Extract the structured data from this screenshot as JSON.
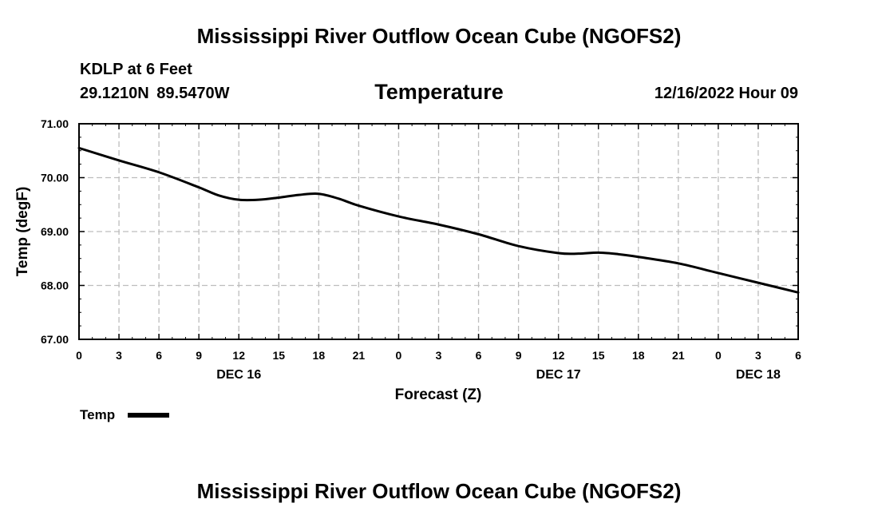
{
  "header": {
    "title": "Mississippi River Outflow Ocean Cube (NGOFS2)",
    "station": "KDLP at 6 Feet",
    "coordinates": "29.1210N  89.5470W",
    "timestamp": "12/16/2022 Hour 09"
  },
  "footer": {
    "title": "Mississippi River Outflow Ocean Cube (NGOFS2)"
  },
  "colors": {
    "line": "#000000",
    "grid": "#bdbdbd",
    "background": "#ffffff"
  },
  "chart_data": {
    "type": "line",
    "title": "Temperature",
    "xlabel": "Forecast (Z)",
    "ylabel": "Temp (degF)",
    "xlim": [
      0,
      54
    ],
    "ylim": [
      67,
      71
    ],
    "x_tick_values": [
      0,
      3,
      6,
      9,
      12,
      15,
      18,
      21,
      24,
      27,
      30,
      33,
      36,
      39,
      42,
      45,
      48,
      51,
      54
    ],
    "x_tick_labels": [
      "0",
      "3",
      "6",
      "9",
      "12",
      "15",
      "18",
      "21",
      "0",
      "3",
      "6",
      "9",
      "12",
      "15",
      "18",
      "21",
      "0",
      "3",
      "6"
    ],
    "y_tick_values": [
      67,
      68,
      69,
      70,
      71
    ],
    "y_tick_labels": [
      "67.00",
      "68.00",
      "69.00",
      "70.00",
      "71.00"
    ],
    "date_labels": [
      {
        "x": 12,
        "label": "DEC 16"
      },
      {
        "x": 36,
        "label": "DEC 17"
      },
      {
        "x": 51,
        "label": "DEC 18"
      }
    ],
    "grid": true,
    "legend": {
      "position": "bottom-left",
      "entries": [
        "Temp"
      ]
    },
    "series": [
      {
        "name": "Temp",
        "x": [
          0,
          3,
          6,
          9,
          10.5,
          12,
          13.5,
          15,
          16.5,
          18,
          19.5,
          21,
          24,
          27,
          30,
          33,
          36,
          37.5,
          39,
          40.5,
          42,
          45,
          48,
          51,
          54
        ],
        "values": [
          70.55,
          70.32,
          70.1,
          69.82,
          69.67,
          69.59,
          69.59,
          69.63,
          69.68,
          69.7,
          69.61,
          69.48,
          69.28,
          69.13,
          68.95,
          68.73,
          68.6,
          68.59,
          68.61,
          68.58,
          68.53,
          68.41,
          68.23,
          68.05,
          67.87
        ]
      }
    ]
  }
}
